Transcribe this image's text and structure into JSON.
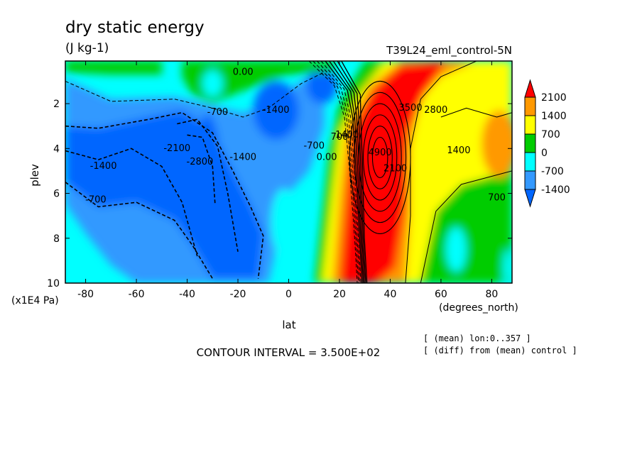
{
  "chart_data": {
    "type": "contour",
    "title": "dry static energy",
    "units": "(J kg-1)",
    "run_label": "T39L24_eml_control-5N",
    "xlabel": "lat",
    "x_unit": "(degrees_north)",
    "ylabel": "plev",
    "y_unit": "(x1E4 Pa)",
    "x_ticks": [
      "-80",
      "-60",
      "-40",
      "-20",
      "0",
      "20",
      "40",
      "60",
      "80"
    ],
    "y_ticks": [
      "2",
      "4",
      "6",
      "8",
      "10"
    ],
    "xlim": [
      -88,
      88
    ],
    "ylim": [
      0.1,
      10
    ],
    "y_inverted": true,
    "contour_interval_text": "CONTOUR INTERVAL = 3.500E+02",
    "notes": [
      "[ (mean) lon:0..357 ]",
      "[ (diff) from (mean) control ]"
    ],
    "colorbar": {
      "labels": [
        "2100",
        "1400",
        "700",
        "0",
        "-700",
        "-1400"
      ],
      "colors": [
        "#ff0000",
        "#ff9900",
        "#ffff00",
        "#00cc00",
        "#00ffff",
        "#3399ff",
        "#0066ff"
      ]
    },
    "level_fill_colors": {
      "-2100": "#0066ff",
      "-1400": "#3399ff",
      "-700": "#00ffff",
      "0": "#00cc00",
      "700": "#ffff00",
      "1400": "#ff9900",
      "2100": "#ff0000"
    },
    "contour_labels": [
      {
        "text": "0.00",
        "lat": -18,
        "plev": 0.6
      },
      {
        "text": "-700",
        "lat": -28,
        "plev": 2.4
      },
      {
        "text": "-1400",
        "lat": -5,
        "plev": 2.3
      },
      {
        "text": "-2100",
        "lat": -44,
        "plev": 4.0
      },
      {
        "text": "-2800",
        "lat": -35,
        "plev": 4.6
      },
      {
        "text": "-1400",
        "lat": -18,
        "plev": 4.4
      },
      {
        "text": "-1400",
        "lat": -73,
        "plev": 4.8
      },
      {
        "text": "-700",
        "lat": -76,
        "plev": 6.3
      },
      {
        "text": "-700",
        "lat": 10,
        "plev": 3.9
      },
      {
        "text": "0.00",
        "lat": 15,
        "plev": 4.4
      },
      {
        "text": "700",
        "lat": 20,
        "plev": 3.5
      },
      {
        "text": "1400",
        "lat": 23,
        "plev": 3.4
      },
      {
        "text": "4900",
        "lat": 36,
        "plev": 4.2
      },
      {
        "text": "2100",
        "lat": 42,
        "plev": 4.9
      },
      {
        "text": "3500",
        "lat": 48,
        "plev": 2.2
      },
      {
        "text": "2800",
        "lat": 58,
        "plev": 2.3
      },
      {
        "text": "1400",
        "lat": 67,
        "plev": 4.1
      },
      {
        "text": "700",
        "lat": 82,
        "plev": 6.2
      }
    ]
  }
}
